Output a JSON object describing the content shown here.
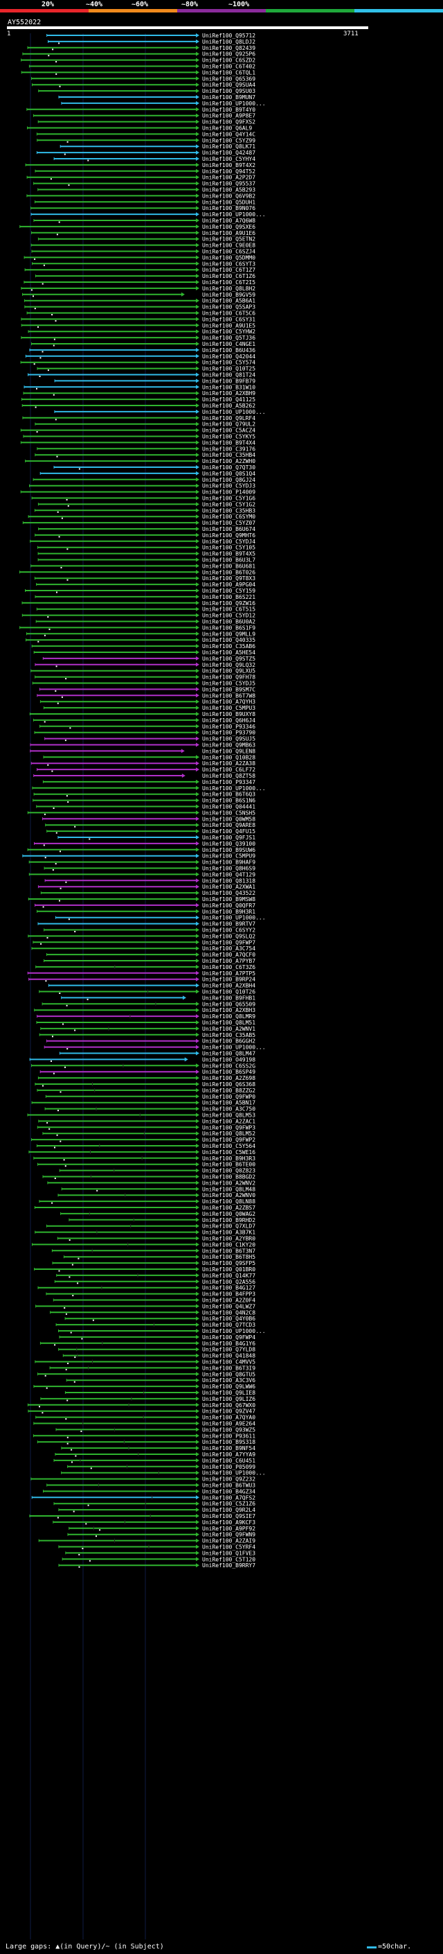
{
  "scale": {
    "labels": [
      "20%",
      "~40%",
      "~60%",
      "~80%",
      "~100%"
    ],
    "colors": [
      "#e8262b",
      "#f08a1d",
      "#8a2b9b",
      "#1fa83b",
      "#31c0e8"
    ]
  },
  "query": {
    "name": "AY552022",
    "start": "1",
    "end": "3711"
  },
  "colors": {
    "green": "#2fb52f",
    "cyan": "#31bbe8",
    "magenta": "#b030c8",
    "gap": "#ffffff"
  },
  "hits": [
    "UniRef100_Q95712",
    "UniRef100_Q8LDJ2",
    "UniRef100_Q82439",
    "UniRef100_Q925P6",
    "UniRef100_C6SZD2",
    "UniRef100_C6T402",
    "UniRef100_C6TQL1",
    "UniRef100_Q65369",
    "UniRef100_Q9SUA4",
    "UniRef100_Q9SU03",
    "UniRef100_B9MUN7",
    "UniRef100_UP1000...",
    "UniRef100_B9T4Y0",
    "UniRef100_A9P8E7",
    "UniRef100_Q9FXS2",
    "UniRef100_Q6AL9",
    "UniRef100_Q4Y14C",
    "UniRef100_C5YZ99",
    "UniRef100_Q8LK71",
    "UniRef100_Q42487",
    "UniRef100_C5YHY4",
    "UniRef100_B9T4X2",
    "UniRef100_Q94T52",
    "UniRef100_A2P2D7",
    "UniRef100_Q95537",
    "UniRef100_A5B293",
    "UniRef100_Q6V9B2",
    "UniRef100_Q5DUH1",
    "UniRef100_B9N076",
    "UniRef100_UP1000...",
    "UniRef100_A7Q6W8",
    "UniRef100_Q9SXE6",
    "UniRef100_A9U1E6",
    "UniRef100_Q5ETN2",
    "UniRef100_C9E0E8",
    "UniRef100_C6SZJ4",
    "UniRef100_Q5DMM0",
    "UniRef100_C6SYT3",
    "UniRef100_C6T1Z7",
    "UniRef100_C6T1Z6",
    "UniRef100_C6T2I5",
    "UniRef100_Q8L8H2",
    "UniRef100_B9GV59",
    "UniRef100_A5B6A1",
    "UniRef100_Q5SAP3",
    "UniRef100_C6T5C6",
    "UniRef100_C6SY31",
    "UniRef100_A9U1E5",
    "UniRef100_C5YHW2",
    "UniRef100_Q5TJ36",
    "UniRef100_C4NGE1",
    "UniRef100_B6U436",
    "UniRef100_Q42044",
    "UniRef100_C5Y574",
    "UniRef100_Q10T25",
    "UniRef100_Q81T24",
    "UniRef100_B9FB79",
    "UniRef100_B31W10",
    "UniRef100_A2XBH9",
    "UniRef100_Q41125",
    "UniRef100_A5B262",
    "UniRef100_UP1000...",
    "UniRef100_Q9LRF4",
    "UniRef100_Q79UL2",
    "UniRef100_C5ACZ4",
    "UniRef100_C5YKY5",
    "UniRef100_B9T4X4",
    "UniRef100_C39176",
    "UniRef100_C35HB4",
    "UniRef100_A2ZWH0",
    "UniRef100_Q7QT30",
    "UniRef100_Q0S1Q4",
    "UniRef100_Q8GJ24",
    "UniRef100_C5YDJ3",
    "UniRef100_P14009",
    "UniRef100_C5Y1G6",
    "UniRef100_C5Y1G2",
    "UniRef100_C35HB3",
    "UniRef100_C6SYM0",
    "UniRef100_C5YZ07",
    "UniRef100_B6U674",
    "UniRef100_Q9MHT6",
    "UniRef100_C5YDJ4",
    "UniRef100_C5Y105",
    "UniRef100_B9T4X5",
    "UniRef100_B6U3L7",
    "UniRef100_B6U681",
    "UniRef100_B6T026",
    "UniRef100_Q9T8X3",
    "UniRef100_A9PG04",
    "UniRef100_C5Y159",
    "UniRef100_B6S221",
    "UniRef100_Q9ZW16",
    "UniRef100_C6T515",
    "UniRef100_C5YD12",
    "UniRef100_B6U0A2",
    "UniRef100_B6S1F9",
    "UniRef100_Q9MLL9",
    "UniRef100_Q40335",
    "UniRef100_C35AB6",
    "UniRef100_A5HE54",
    "UniRef100_Q9STZ5",
    "UniRef100_Q9LQ32",
    "UniRef100_Q9LXU5",
    "UniRef100_Q9FH78",
    "UniRef100_C5YDJ5",
    "UniRef100_B9SM7C",
    "UniRef100_B6T7W8",
    "UniRef100_A7QYH3",
    "UniRef100_C5MPU3",
    "UniRef100_B9UXY8",
    "UniRef100_Q6H6J4",
    "UniRef100_P93346",
    "UniRef100_P93790",
    "UniRef100_Q9SUJ5",
    "UniRef100_Q9MB63",
    "UniRef100_Q9LEN8",
    "UniRef100_Q10B28",
    "UniRef100_A2ZA38",
    "UniRef100_C6LF72",
    "UniRef100_Q8ZT58",
    "UniRef100_P93347",
    "UniRef100_UP1000...",
    "UniRef100_B6T6Q3",
    "UniRef100_B6S1N6",
    "UniRef100_Q04441",
    "UniRef100_C5NSH5",
    "UniRef100_Q0WM58",
    "UniRef100_Q9ARE8",
    "UniRef100_Q4FU15",
    "UniRef100_Q9FJS1",
    "UniRef100_Q39100",
    "UniRef100_B9SUW6",
    "UniRef100_C5MPU9",
    "UniRef100_B9HAF9",
    "UniRef100_Q8H6S9",
    "UniRef100_Q4T129",
    "UniRef100_Q81318",
    "UniRef100_A2XWA1",
    "UniRef100_Q43522",
    "UniRef100_B9MSW8",
    "UniRef100_Q0QFR7",
    "UniRef100_B9H3R1",
    "UniRef100_UP1000...",
    "UniRef100_B9RTV7",
    "UniRef100_C6SYY2",
    "UniRef100_Q9SLQ2",
    "UniRef100_Q9FWP7",
    "UniRef100_A3C754",
    "UniRef100_A7QCF0",
    "UniRef100_A7PYB7",
    "UniRef100_C6T3Z6",
    "UniRef100_A7PTP5",
    "UniRef100_B9RP24",
    "UniRef100_A2XBH4",
    "UniRef100_Q10T26",
    "UniRef100_B9FHB1",
    "UniRef100_Q65509",
    "UniRef100_A2XBH3",
    "UniRef100_Q8LMR9",
    "UniRef100_Q8LM51",
    "UniRef100_A2WNV1",
    "UniRef100_C35AB5",
    "UniRef100_B6GGH2",
    "UniRef100_UP1000...",
    "UniRef100_Q8LM47",
    "UniRef100_O49198",
    "UniRef100_C6SS2G",
    "UniRef100_B6SP49",
    "UniRef100_A2Z698",
    "UniRef100_Q6S368",
    "UniRef100_B8ZZG2",
    "UniRef100_Q9FWP0",
    "UniRef100_A5BN17",
    "UniRef100_A3C750",
    "UniRef100_Q8LM53",
    "UniRef100_A2ZAC1",
    "UniRef100_Q9FWP3",
    "UniRef100_Q8LM52",
    "UniRef100_Q9FWP2",
    "UniRef100_C5Y564",
    "UniRef100_C5WE16",
    "UniRef100_B9H3R3",
    "UniRef100_B6TE00",
    "UniRef100_Q0Z823",
    "UniRef100_B8BGD2",
    "UniRef100_A2WNV2",
    "UniRef100_Q8LM48",
    "UniRef100_A2WNV0",
    "UniRef100_Q8LN88",
    "UniRef100_A2ZBS7",
    "UniRef100_Q0WAG2",
    "UniRef100_B9RHD2",
    "UniRef100_Q7XLD7",
    "UniRef100_A3B7K1",
    "UniRef100_A2YBR0",
    "UniRef100_C1KY20",
    "UniRef100_B6T3N7",
    "UniRef100_B6T8H5",
    "UniRef100_Q9SFP5",
    "UniRef100_Q01BR0",
    "UniRef100_Q14K77",
    "UniRef100_Q2A556",
    "UniRef100_B4G127",
    "UniRef100_B4FPP3",
    "UniRef100_A2Z0F4",
    "UniRef100_Q4LWZ7",
    "UniRef100_Q4N2C8",
    "UniRef100_Q4Y0B6",
    "UniRef100_Q7TCD3",
    "UniRef100_UP1000...",
    "UniRef100_Q9FWP4",
    "UniRef100_B4G1Y6",
    "UniRef100_Q7YLD8",
    "UniRef100_Q41848",
    "UniRef100_C4MVV5",
    "UniRef100_B6T3I9",
    "UniRef100_Q8GTU5",
    "UniRef100_A3C3V6",
    "UniRef100_Q9LWW6",
    "UniRef100_Q9LIE8",
    "UniRef100_Q9LIZ6",
    "UniRef100_Q67WX0",
    "UniRef100_Q9ZV47",
    "UniRef100_A7QYA0",
    "UniRef100_A9E264",
    "UniRef100_Q93WZ5",
    "UniRef100_P93611",
    "UniRef100_B9S318",
    "UniRef100_B9NF54",
    "UniRef100_A7YYA9",
    "UniRef100_C6U451",
    "UniRef100_P05099",
    "UniRef100_UP1000...",
    "UniRef100_Q9Z232",
    "UniRef100_B6TWU3",
    "UniRef100_B4GZ34",
    "UniRef100_A7QFS2",
    "UniRef100_C5Z1Z6",
    "UniRef100_Q9R2L4",
    "UniRef100_Q9SIE7",
    "UniRef100_A9KCF3",
    "UniRef100_A9PF92",
    "UniRef100_Q9FWN9",
    "UniRef100_A2ZAI9",
    "UniRef100_C5YRF4",
    "UniRef100_Q1FVE3",
    "UniRef100_C5T120",
    "UniRef100_B9RRY7"
  ],
  "footer": {
    "legend": "Large gaps: ▲(in Query)/~ (in Subject)",
    "scale_note": "=50char."
  }
}
